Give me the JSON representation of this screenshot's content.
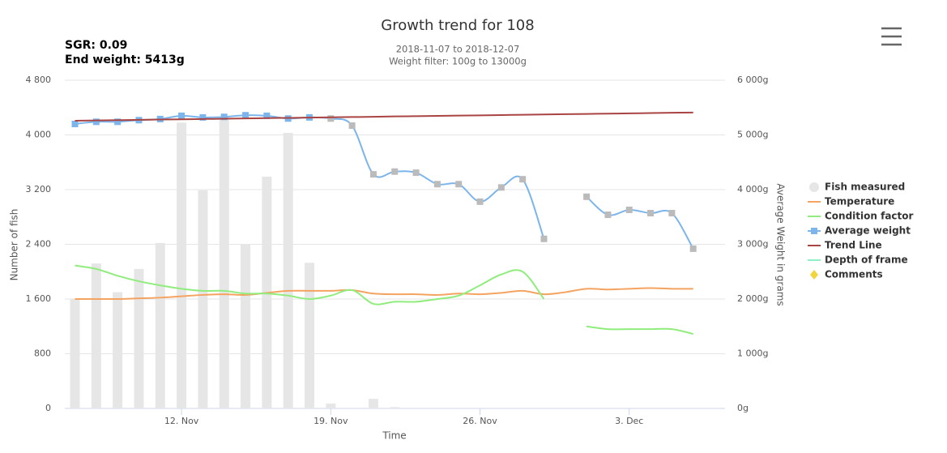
{
  "chart_data": {
    "type": "combo",
    "title": "Growth trend for 108",
    "subtitle": [
      "2018-11-07 to 2018-12-07",
      "Weight filter: 100g to 13000g"
    ],
    "stats": [
      "SGR: 0.09",
      "End weight: 5413g"
    ],
    "x_label": "Time",
    "y_label": "Number of fish",
    "y2_label": "Average Weight in grams",
    "categories": [
      null,
      null,
      null,
      null,
      null,
      "12. Nov",
      null,
      null,
      null,
      null,
      null,
      null,
      "19. Nov",
      null,
      null,
      null,
      null,
      null,
      null,
      "26. Nov",
      null,
      null,
      null,
      null,
      null,
      null,
      "3. Dec",
      null,
      null,
      null
    ],
    "ylim": [
      0,
      4800
    ],
    "yticks": [
      0,
      800,
      {
        "value": 1600,
        "label": "1 600"
      },
      {
        "value": 2400,
        "label": "2 400"
      },
      {
        "value": 3200,
        "label": "3 200"
      },
      {
        "value": 4000,
        "label": "4 000"
      },
      {
        "value": 4800,
        "label": "4 800"
      }
    ],
    "y2lim": [
      0,
      6000
    ],
    "y2ticks": [
      {
        "value": 0,
        "label": "0g"
      },
      {
        "value": 1000,
        "label": "1 000g"
      },
      {
        "value": 2000,
        "label": "2 000g"
      },
      {
        "value": 3000,
        "label": "3 000g"
      },
      {
        "value": 4000,
        "label": "4 000g"
      },
      {
        "value": 5000,
        "label": "5 000g"
      },
      {
        "value": 6000,
        "label": "6 000g"
      }
    ],
    "grid": true,
    "legend": "right",
    "series": [
      {
        "name": "Fish measured",
        "type": "bar",
        "color": "#e6e6e6",
        "values": [
          1600,
          2120,
          1700,
          2040,
          2420,
          4180,
          3190,
          4260,
          2400,
          3390,
          4030,
          2130,
          70,
          0,
          140,
          20,
          0,
          0,
          0,
          0,
          0,
          0,
          0,
          0,
          0,
          0,
          0,
          0,
          0,
          0
        ]
      },
      {
        "name": "Temperature",
        "type": "line",
        "color": "#f4a460",
        "values": [
          1600,
          1600,
          1600,
          1610,
          1620,
          1640,
          1660,
          1670,
          1660,
          1690,
          1720,
          1720,
          1720,
          1730,
          1680,
          1670,
          1670,
          1660,
          1680,
          1670,
          1690,
          1720,
          1670,
          1700,
          1750,
          1740,
          1750,
          1760,
          1750,
          1750
        ]
      },
      {
        "name": "Condition factor",
        "type": "line",
        "color": "#90ed7d",
        "values": [
          2090,
          2040,
          1940,
          1860,
          1800,
          1750,
          1720,
          1720,
          1680,
          1680,
          1650,
          1600,
          1650,
          1730,
          1530,
          1560,
          1560,
          1600,
          1650,
          1800,
          1960,
          2000,
          1600,
          null,
          1200,
          1160,
          1160,
          1160,
          1160,
          1090
        ]
      },
      {
        "name": "Average weight",
        "type": "line",
        "axis": "y2",
        "marker": "square",
        "color": "#7cb5ec",
        "values": [
          5200,
          5240,
          5240,
          5270,
          5290,
          5350,
          5320,
          5330,
          5360,
          5350,
          5300,
          5320,
          5300,
          5170,
          4280,
          4330,
          4310,
          4100,
          4100,
          3780,
          4040,
          4190,
          3100,
          null,
          3870,
          3540,
          3630,
          3570,
          3570,
          2920
        ]
      },
      {
        "name": "Trend Line",
        "type": "line",
        "axis": "y2",
        "color": "#a94442",
        "values": [
          5260,
          5265,
          5270,
          5276,
          5281,
          5286,
          5291,
          5296,
          5301,
          5307,
          5312,
          5317,
          5322,
          5327,
          5332,
          5338,
          5343,
          5348,
          5353,
          5358,
          5363,
          5369,
          5374,
          5379,
          5384,
          5389,
          5394,
          5400,
          5405,
          5410
        ]
      },
      {
        "name": "Depth of frame",
        "type": "line",
        "color": "#8ef0c8"
      },
      {
        "name": "Comments",
        "type": "point",
        "marker": "diamond",
        "color": "#f2d43d"
      }
    ]
  }
}
